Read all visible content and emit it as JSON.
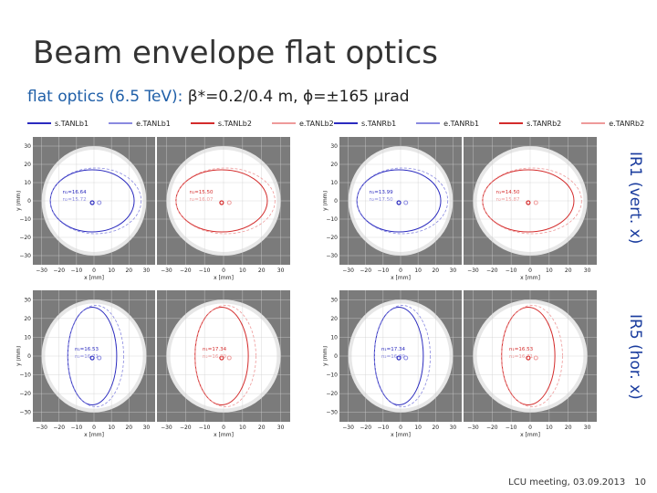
{
  "slide": {
    "title": "Beam envelope flat optics",
    "subtitle_prefix": "flat optics (6.5 TeV):",
    "subtitle_rest": " β*=0.2/0.4 m, ϕ=±165 μrad",
    "ir1_label": "IR1 (vert. x)",
    "ir5_label": "IR5 (hor. x)",
    "footer_text": "LCU meeting, 03.09.2013",
    "page_number": "10"
  },
  "legends": {
    "left": [
      "s.TANLb1",
      "e.TANLb1",
      "s.TANLb2",
      "e.TANLb2"
    ],
    "right": [
      "s.TANRb1",
      "e.TANRb1",
      "s.TANRb2",
      "e.TANRb2"
    ]
  },
  "colors": {
    "beam1": "#2b2bbf",
    "beam2": "#d42c2c",
    "beam1_light": "#8a8ae0",
    "beam2_light": "#ee9a9a",
    "aperture": "#7b7b7b",
    "accent": "#1f5fa8"
  },
  "chart_data": [
    {
      "type": "scatter",
      "panel": "IR1 left",
      "xlabel": "x [mm]",
      "ylabel": "y [mm]",
      "xlim": [
        -35,
        35
      ],
      "ylim": [
        -35,
        35
      ],
      "x_ticks": [
        "−30",
        "−20",
        "−10",
        "0",
        "10",
        "20",
        "30"
      ],
      "y_ticks": [
        "30",
        "20",
        "10",
        "0",
        "−10",
        "−20",
        "−30"
      ],
      "annotations": [
        {
          "lines": [
            "n₁=16.64",
            "n₂=15.72"
          ],
          "beam": "b1"
        },
        {
          "lines": [
            "n₁=15.50",
            "n₂=16.07"
          ],
          "beam": "b2"
        }
      ]
    },
    {
      "type": "scatter",
      "panel": "IR1 right",
      "xlabel": "x [mm]",
      "ylabel": "y [mm]",
      "xlim": [
        -35,
        35
      ],
      "ylim": [
        -35,
        35
      ],
      "x_ticks": [
        "−30",
        "−20",
        "−10",
        "0",
        "10",
        "20",
        "30"
      ],
      "y_ticks": [
        "30",
        "20",
        "10",
        "0",
        "−10",
        "−20",
        "−30"
      ],
      "annotations": [
        {
          "lines": [
            "n₁=13.99",
            "n₂=17.50"
          ],
          "beam": "b1"
        },
        {
          "lines": [
            "n₁=14.50",
            "n₂=15.87"
          ],
          "beam": "b2"
        }
      ]
    },
    {
      "type": "scatter",
      "panel": "IR5 left",
      "xlabel": "x [mm]",
      "ylabel": "y [mm]",
      "xlim": [
        -35,
        35
      ],
      "ylim": [
        -35,
        35
      ],
      "x_ticks": [
        "−30",
        "−20",
        "−10",
        "0",
        "10",
        "20",
        "30"
      ],
      "y_ticks": [
        "30",
        "20",
        "10",
        "0",
        "−10",
        "−20",
        "−30"
      ],
      "annotations": [
        {
          "lines": [
            "n₁=16.53",
            "n₂=16.71"
          ],
          "beam": "b1"
        },
        {
          "lines": [
            "n₁=17.34",
            "n₂=16.89"
          ],
          "beam": "b2"
        }
      ]
    },
    {
      "type": "scatter",
      "panel": "IR5 right",
      "xlabel": "x [mm]",
      "ylabel": "y [mm]",
      "xlim": [
        -35,
        35
      ],
      "ylim": [
        -35,
        35
      ],
      "x_ticks": [
        "−30",
        "−20",
        "−10",
        "0",
        "10",
        "20",
        "30"
      ],
      "y_ticks": [
        "30",
        "20",
        "10",
        "0",
        "−10",
        "−20",
        "−30"
      ],
      "annotations": [
        {
          "lines": [
            "n₁=17.34",
            "n₂=16.89"
          ],
          "beam": "b1"
        },
        {
          "lines": [
            "n₁=16.53",
            "n₂=16.71"
          ],
          "beam": "b2"
        }
      ]
    }
  ]
}
